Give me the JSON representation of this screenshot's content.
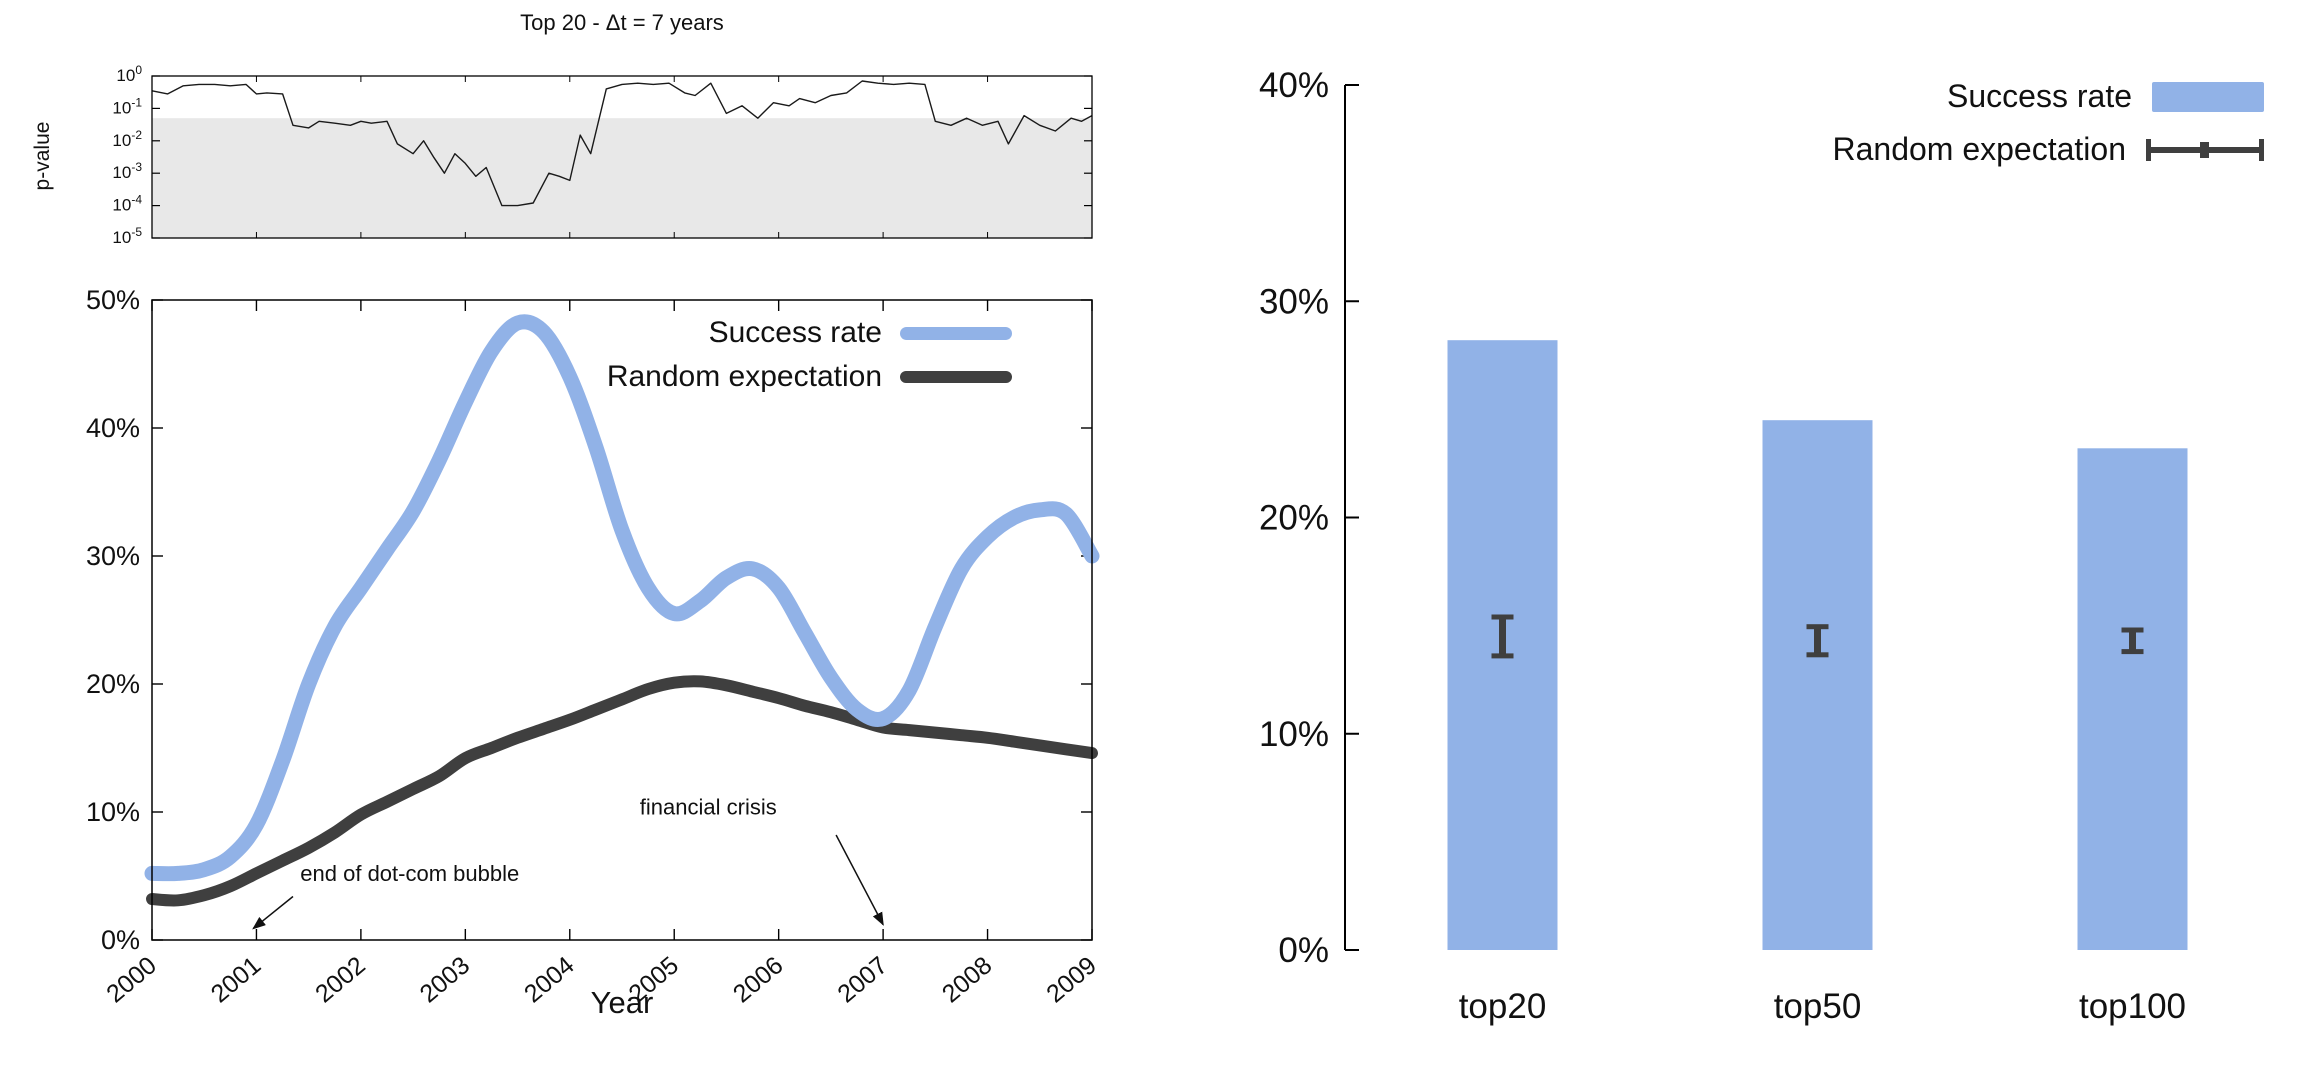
{
  "colors": {
    "success": "#91b2e7",
    "random": "#3f3f3f",
    "pvalue_line": "#1a1a1a",
    "band": "#e8e8e8",
    "axis": "#000000"
  },
  "chart_data": [
    {
      "id": "pvalue-timeline",
      "type": "line",
      "title": "Top 20 - Δt = 7 years",
      "ylabel": "p-value",
      "yscale": "log",
      "ylim": [
        1e-05,
        1
      ],
      "xlim": [
        2000,
        2009
      ],
      "yticks_exponents": [
        0,
        -1,
        -2,
        -3,
        -4,
        -5
      ],
      "significance_band_max": 0.05,
      "series": [
        {
          "name": "p-value",
          "x": [
            2000,
            2000.15,
            2000.3,
            2000.45,
            2000.6,
            2000.75,
            2000.9,
            2001,
            2001.1,
            2001.25,
            2001.35,
            2001.5,
            2001.6,
            2001.75,
            2001.9,
            2002,
            2002.1,
            2002.25,
            2002.35,
            2002.5,
            2002.6,
            2002.7,
            2002.8,
            2002.9,
            2003,
            2003.1,
            2003.2,
            2003.35,
            2003.5,
            2003.65,
            2003.8,
            2003.9,
            2004,
            2004.1,
            2004.2,
            2004.35,
            2004.5,
            2004.65,
            2004.8,
            2004.95,
            2005.1,
            2005.2,
            2005.35,
            2005.5,
            2005.65,
            2005.8,
            2005.95,
            2006.1,
            2006.2,
            2006.35,
            2006.5,
            2006.65,
            2006.8,
            2006.95,
            2007.1,
            2007.25,
            2007.4,
            2007.5,
            2007.65,
            2007.8,
            2007.95,
            2008.1,
            2008.2,
            2008.35,
            2008.5,
            2008.65,
            2008.8,
            2008.9,
            2009
          ],
          "p": [
            0.35,
            0.28,
            0.5,
            0.55,
            0.55,
            0.5,
            0.55,
            0.28,
            0.3,
            0.28,
            0.03,
            0.025,
            0.04,
            0.035,
            0.03,
            0.04,
            0.035,
            0.04,
            0.008,
            0.004,
            0.01,
            0.003,
            0.001,
            0.004,
            0.002,
            0.0008,
            0.0015,
            0.0001,
            0.0001,
            0.00012,
            0.001,
            0.0008,
            0.0006,
            0.015,
            0.004,
            0.4,
            0.55,
            0.6,
            0.55,
            0.6,
            0.3,
            0.25,
            0.6,
            0.07,
            0.12,
            0.05,
            0.15,
            0.12,
            0.2,
            0.15,
            0.25,
            0.3,
            0.7,
            0.6,
            0.55,
            0.6,
            0.55,
            0.04,
            0.03,
            0.05,
            0.03,
            0.04,
            0.008,
            0.06,
            0.03,
            0.02,
            0.05,
            0.04,
            0.06
          ]
        }
      ]
    },
    {
      "id": "success-rate-timeline",
      "type": "line",
      "xlabel": "Year",
      "xlim": [
        2000,
        2009
      ],
      "ylim": [
        0,
        50
      ],
      "ytick_values": [
        0,
        10,
        20,
        30,
        40,
        50
      ],
      "yticks": [
        "0%",
        "10%",
        "20%",
        "30%",
        "40%",
        "50%"
      ],
      "xticks": [
        2000,
        2001,
        2002,
        2003,
        2004,
        2005,
        2006,
        2007,
        2008,
        2009
      ],
      "legend": [
        {
          "label": "Success rate",
          "color": "#91b2e7"
        },
        {
          "label": "Random expectation",
          "color": "#3f3f3f"
        }
      ],
      "x": [
        2000,
        2000.25,
        2000.5,
        2000.75,
        2001,
        2001.25,
        2001.5,
        2001.75,
        2002,
        2002.25,
        2002.5,
        2002.75,
        2003,
        2003.25,
        2003.5,
        2003.75,
        2004,
        2004.25,
        2004.5,
        2004.75,
        2005,
        2005.25,
        2005.5,
        2005.75,
        2006,
        2006.25,
        2006.5,
        2006.75,
        2007,
        2007.25,
        2007.5,
        2007.75,
        2008,
        2008.25,
        2008.5,
        2008.75,
        2009
      ],
      "series": [
        {
          "name": "Success rate",
          "values": [
            5.2,
            5.2,
            5.5,
            6.5,
            9,
            14,
            20,
            24.5,
            27.5,
            30.5,
            33.5,
            37.5,
            42,
            46,
            48.2,
            47.5,
            44,
            38.5,
            32,
            27.5,
            25.5,
            26.5,
            28.3,
            29,
            27.5,
            24,
            20.5,
            18,
            17.3,
            19.5,
            24.5,
            29,
            31.5,
            33,
            33.6,
            33.3,
            30
          ]
        },
        {
          "name": "Random expectation",
          "values": [
            3.2,
            3.1,
            3.5,
            4.2,
            5.2,
            6.2,
            7.2,
            8.4,
            9.8,
            10.8,
            11.8,
            12.8,
            14.2,
            15,
            15.8,
            16.5,
            17.2,
            18,
            18.8,
            19.6,
            20.1,
            20.2,
            19.9,
            19.4,
            18.9,
            18.3,
            17.8,
            17.2,
            16.6,
            16.4,
            16.2,
            16,
            15.8,
            15.5,
            15.2,
            14.9,
            14.6
          ]
        }
      ],
      "annotations": [
        {
          "text": "end of dot-com bubble",
          "text_x": 2001.42,
          "text_y": 4.6,
          "arrow_from_x": 2001.35,
          "arrow_from_y": 3.4,
          "arrow_to_x": 2000.97,
          "arrow_to_y": 0.9
        },
        {
          "text": "financial crisis",
          "text_x": 2004.67,
          "text_y": 9.8,
          "arrow_from_x": 2006.55,
          "arrow_from_y": 8.2,
          "arrow_to_x": 2007.0,
          "arrow_to_y": 1.2
        }
      ]
    },
    {
      "id": "summary-bars",
      "type": "bar",
      "categories": [
        "top20",
        "top50",
        "top100"
      ],
      "success_values": [
        28.2,
        24.5,
        23.2
      ],
      "random_values": [
        14.5,
        14.3,
        14.3
      ],
      "random_errors": [
        0.9,
        0.65,
        0.5
      ],
      "ylim": [
        0,
        40
      ],
      "ytick_values": [
        0,
        10,
        20,
        30,
        40
      ],
      "yticks": [
        "0%",
        "10%",
        "20%",
        "30%",
        "40%"
      ],
      "legend": [
        {
          "label": "Success rate",
          "color": "#91b2e7"
        },
        {
          "label": "Random expectation",
          "color": "#3f3f3f"
        }
      ]
    }
  ]
}
